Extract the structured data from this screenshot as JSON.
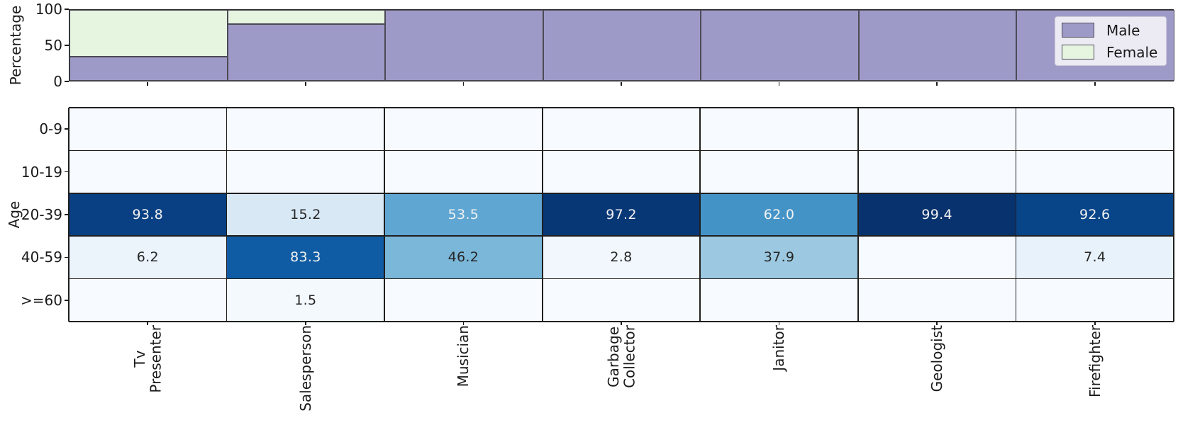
{
  "figure": {
    "background": "#ffffff"
  },
  "legend": {
    "items": [
      {
        "label": "Male",
        "color": "#9e9ac8"
      },
      {
        "label": "Female",
        "color": "#e5f5e0"
      }
    ]
  },
  "chart_data": [
    {
      "type": "bar",
      "subtype": "stacked-percentage",
      "title": "",
      "xlabel": "",
      "ylabel": "Percentage",
      "ylim": [
        0,
        100
      ],
      "yticks": [
        0,
        50,
        100
      ],
      "grid": false,
      "legend_position": "upper right",
      "categories": [
        "Tv\nPresenter",
        "Salesperson",
        "Musician",
        "Garbage\nCollector",
        "Janitor",
        "Geologist",
        "Firefighter"
      ],
      "series": [
        {
          "name": "Male",
          "color": "#9e9ac8",
          "values": [
            34,
            80,
            100,
            100,
            100,
            100,
            100
          ]
        },
        {
          "name": "Female",
          "color": "#e5f5e0",
          "values": [
            66,
            20,
            0,
            0,
            0,
            0,
            0
          ]
        }
      ]
    },
    {
      "type": "heatmap",
      "title": "",
      "xlabel": "",
      "ylabel": "Age",
      "colormap": "Blues",
      "vmin": 0,
      "vmax": 100,
      "annotation_decimals": 1,
      "rows": [
        "0-9",
        "10-19",
        "20-39",
        "40-59",
        ">=60"
      ],
      "columns": [
        "Tv\nPresenter",
        "Salesperson",
        "Musician",
        "Garbage\nCollector",
        "Janitor",
        "Geologist",
        "Firefighter"
      ],
      "values": [
        [
          null,
          null,
          null,
          null,
          null,
          null,
          null
        ],
        [
          null,
          null,
          null,
          null,
          null,
          null,
          null
        ],
        [
          93.8,
          15.2,
          53.5,
          97.2,
          62.0,
          99.4,
          92.6
        ],
        [
          6.2,
          83.3,
          46.2,
          2.8,
          37.9,
          null,
          7.4
        ],
        [
          null,
          1.5,
          null,
          null,
          null,
          null,
          null
        ]
      ]
    }
  ]
}
